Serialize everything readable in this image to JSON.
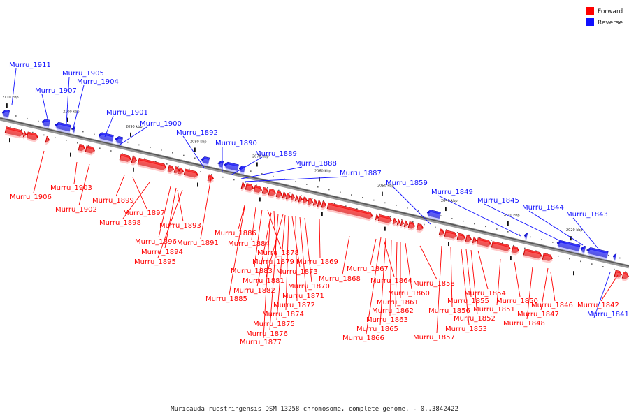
{
  "title": "Muricauda ruestringensis DSM 13258 chromosome, complete genome. - 0..3842422",
  "colors": {
    "forward": "#ff0000",
    "reverse": "#1010ff",
    "axis": "#777777"
  },
  "legend": [
    {
      "label": "Forward",
      "strand": "forward"
    },
    {
      "label": "Reverse",
      "strand": "reverse"
    }
  ],
  "ticks": [
    "2110 kbp",
    "2100 kbp",
    "2090 kbp",
    "2080 kbp",
    "2070 kbp",
    "2060 kbp",
    "2050 kbp",
    "2040 kbp",
    "2030 kbp",
    "2020 kbp"
  ],
  "genes": [
    {
      "name": "Murru_1911",
      "strand": "reverse"
    },
    {
      "name": "Murru_1907",
      "strand": "reverse"
    },
    {
      "name": "Murru_1905",
      "strand": "reverse"
    },
    {
      "name": "Murru_1904",
      "strand": "reverse"
    },
    {
      "name": "Murru_1901",
      "strand": "reverse"
    },
    {
      "name": "Murru_1900",
      "strand": "reverse"
    },
    {
      "name": "Murru_1892",
      "strand": "reverse"
    },
    {
      "name": "Murru_1890",
      "strand": "reverse"
    },
    {
      "name": "Murru_1889",
      "strand": "reverse"
    },
    {
      "name": "Murru_1888",
      "strand": "reverse"
    },
    {
      "name": "Murru_1887",
      "strand": "reverse"
    },
    {
      "name": "Murru_1859",
      "strand": "reverse"
    },
    {
      "name": "Murru_1849",
      "strand": "reverse"
    },
    {
      "name": "Murru_1845",
      "strand": "reverse"
    },
    {
      "name": "Murru_1844",
      "strand": "reverse"
    },
    {
      "name": "Murru_1843",
      "strand": "reverse"
    },
    {
      "name": "Murru_1841",
      "strand": "reverse"
    },
    {
      "name": "Murru_1906",
      "strand": "forward"
    },
    {
      "name": "Murru_1903",
      "strand": "forward"
    },
    {
      "name": "Murru_1902",
      "strand": "forward"
    },
    {
      "name": "Murru_1899",
      "strand": "forward"
    },
    {
      "name": "Murru_1897",
      "strand": "forward"
    },
    {
      "name": "Murru_1898",
      "strand": "forward"
    },
    {
      "name": "Murru_1893",
      "strand": "forward"
    },
    {
      "name": "Murru_1896",
      "strand": "forward"
    },
    {
      "name": "Murru_1894",
      "strand": "forward"
    },
    {
      "name": "Murru_1895",
      "strand": "forward"
    },
    {
      "name": "Murru_1891",
      "strand": "forward"
    },
    {
      "name": "Murru_1886",
      "strand": "forward"
    },
    {
      "name": "Murru_1884",
      "strand": "forward"
    },
    {
      "name": "Murru_1878",
      "strand": "forward"
    },
    {
      "name": "Murru_1879",
      "strand": "forward"
    },
    {
      "name": "Murru_1869",
      "strand": "forward"
    },
    {
      "name": "Murru_1883",
      "strand": "forward"
    },
    {
      "name": "Murru_1873",
      "strand": "forward"
    },
    {
      "name": "Murru_1881",
      "strand": "forward"
    },
    {
      "name": "Murru_1882",
      "strand": "forward"
    },
    {
      "name": "Murru_1870",
      "strand": "forward"
    },
    {
      "name": "Murru_1885",
      "strand": "forward"
    },
    {
      "name": "Murru_1871",
      "strand": "forward"
    },
    {
      "name": "Murru_1872",
      "strand": "forward"
    },
    {
      "name": "Murru_1874",
      "strand": "forward"
    },
    {
      "name": "Murru_1875",
      "strand": "forward"
    },
    {
      "name": "Murru_1876",
      "strand": "forward"
    },
    {
      "name": "Murru_1877",
      "strand": "forward"
    },
    {
      "name": "Murru_1868",
      "strand": "forward"
    },
    {
      "name": "Murru_1867",
      "strand": "forward"
    },
    {
      "name": "Murru_1864",
      "strand": "forward"
    },
    {
      "name": "Murru_1860",
      "strand": "forward"
    },
    {
      "name": "Murru_1861",
      "strand": "forward"
    },
    {
      "name": "Murru_1862",
      "strand": "forward"
    },
    {
      "name": "Murru_1863",
      "strand": "forward"
    },
    {
      "name": "Murru_1865",
      "strand": "forward"
    },
    {
      "name": "Murru_1866",
      "strand": "forward"
    },
    {
      "name": "Murru_1858",
      "strand": "forward"
    },
    {
      "name": "Murru_1857",
      "strand": "forward"
    },
    {
      "name": "Murru_1854",
      "strand": "forward"
    },
    {
      "name": "Murru_1855",
      "strand": "forward"
    },
    {
      "name": "Murru_1856",
      "strand": "forward"
    },
    {
      "name": "Murru_1852",
      "strand": "forward"
    },
    {
      "name": "Murru_1853",
      "strand": "forward"
    },
    {
      "name": "Murru_1851",
      "strand": "forward"
    },
    {
      "name": "Murru_1850",
      "strand": "forward"
    },
    {
      "name": "Murru_1848",
      "strand": "forward"
    },
    {
      "name": "Murru_1846",
      "strand": "forward"
    },
    {
      "name": "Murru_1847",
      "strand": "forward"
    },
    {
      "name": "Murru_1842",
      "strand": "forward"
    }
  ]
}
